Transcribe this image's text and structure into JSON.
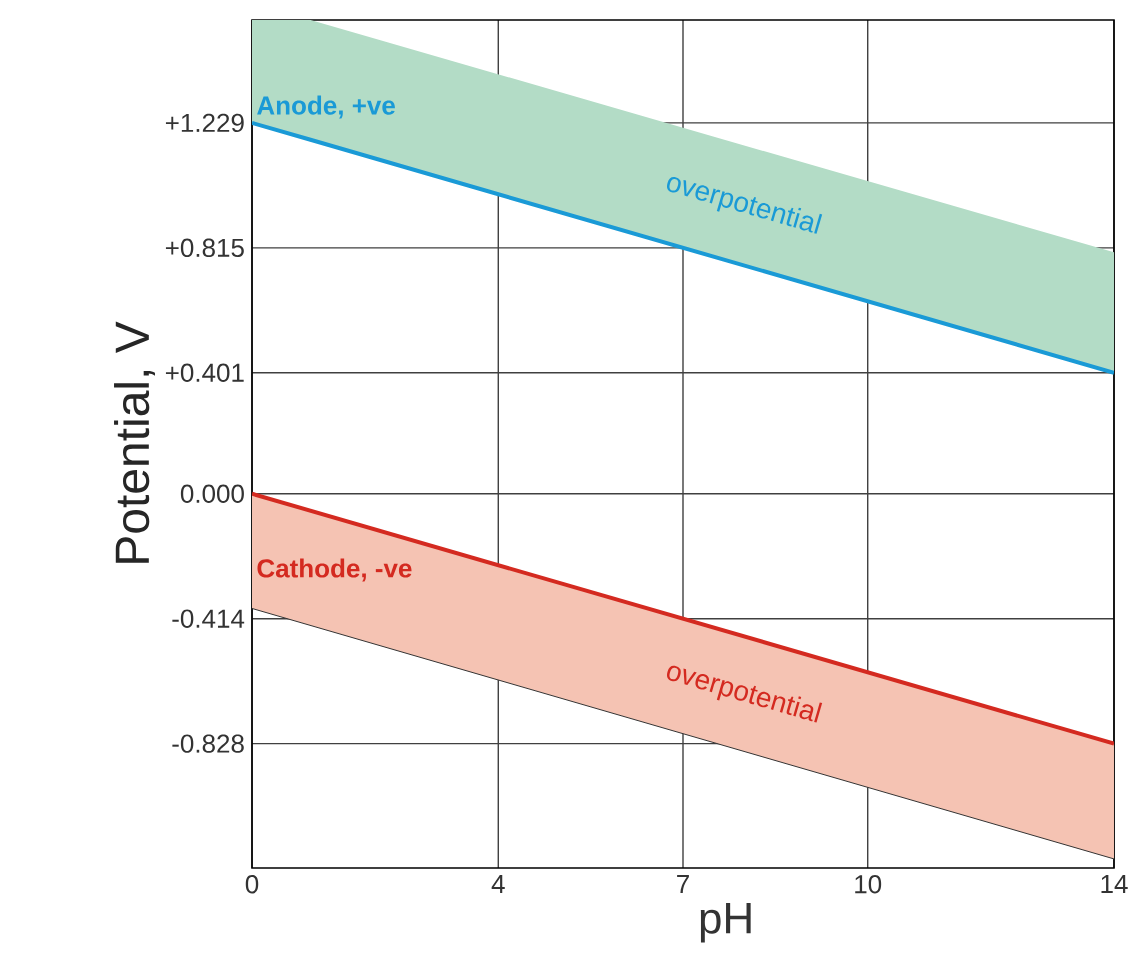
{
  "chart_data": {
    "type": "line",
    "xlabel": "pH",
    "ylabel": "Potential, V",
    "xlim": [
      0,
      14
    ],
    "ylim": [
      -1.24,
      1.57
    ],
    "xticks": [
      0,
      4,
      7,
      10,
      14
    ],
    "yticks": [
      {
        "value": 1.229,
        "label": "+1.229"
      },
      {
        "value": 0.815,
        "label": "+0.815"
      },
      {
        "value": 0.401,
        "label": "+0.401"
      },
      {
        "value": 0,
        "label": "0.000"
      },
      {
        "value": -0.414,
        "label": "-0.414"
      },
      {
        "value": -0.828,
        "label": "-0.828"
      }
    ],
    "grid": true,
    "series": [
      {
        "name": "Anode, +ve",
        "color": "#1a9ad6",
        "x": [
          0,
          0.95,
          14
        ],
        "values": [
          1.229,
          1.173,
          0.401
        ],
        "lower": [
          1.229,
          1.173,
          0.401
        ],
        "upper": [
          1.57,
          1.57,
          0.8
        ]
      },
      {
        "name": "Cathode, -ve",
        "color": "#d42a20",
        "x": [
          0,
          14
        ],
        "values": [
          0,
          -0.828
        ],
        "lower": [
          -0.38,
          -1.21
        ],
        "upper": [
          0,
          -0.828
        ]
      }
    ],
    "annotations": [
      "overpotential",
      "overpotential"
    ]
  }
}
